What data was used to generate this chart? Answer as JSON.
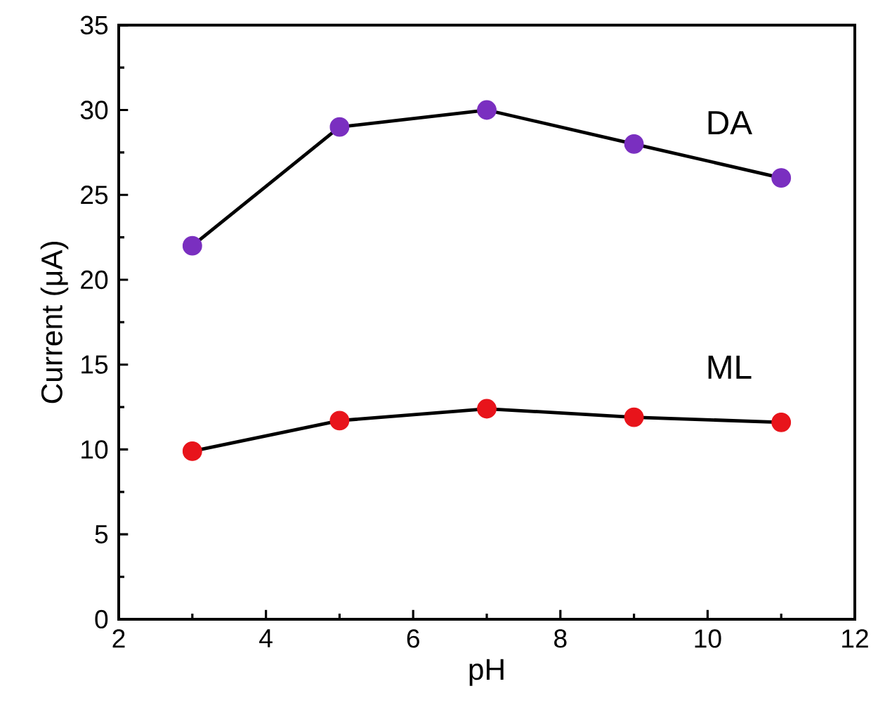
{
  "chart_data": {
    "type": "line",
    "xlabel": "pH",
    "ylabel": "Current (μA)",
    "x": [
      3,
      5,
      7,
      9,
      11
    ],
    "series": [
      {
        "name": "DA",
        "color": "#7a2fc0",
        "values": [
          22,
          29,
          30,
          28,
          26
        ]
      },
      {
        "name": "ML",
        "color": "#e8141b",
        "values": [
          9.9,
          11.7,
          12.4,
          11.9,
          11.6
        ]
      }
    ],
    "xlim": [
      2,
      12
    ],
    "xticks": [
      2,
      4,
      6,
      8,
      10,
      12
    ],
    "ylim": [
      0,
      35
    ],
    "yticks": [
      0,
      5,
      10,
      15,
      20,
      25,
      30,
      35
    ],
    "grid": false,
    "marker": "circle",
    "line_style": "solid"
  }
}
